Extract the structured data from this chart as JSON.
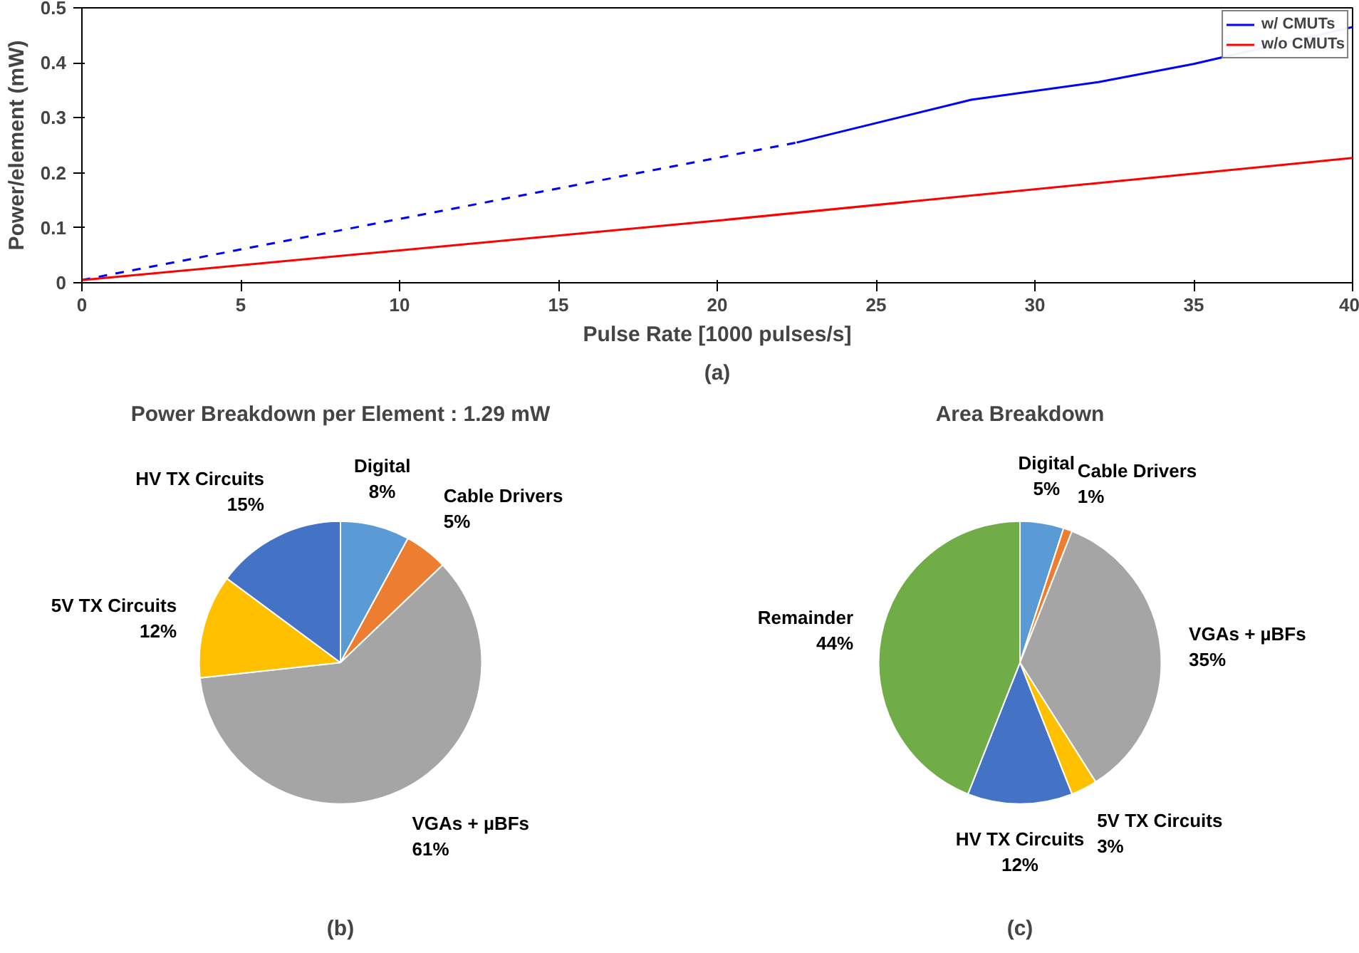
{
  "chart_data": [
    {
      "type": "line",
      "xlabel": "Pulse Rate [1000 pulses/s]",
      "ylabel": "Power/element (mW)",
      "xlim": [
        0,
        40
      ],
      "ylim": [
        0,
        0.5
      ],
      "xticks": [
        0,
        5,
        10,
        15,
        20,
        25,
        30,
        35,
        40
      ],
      "yticks": [
        0,
        0.1,
        0.2,
        0.3,
        0.4,
        0.5
      ],
      "grid": false,
      "legend": "top right",
      "annotations": [
        "(a)"
      ],
      "series": [
        {
          "color": "#0000ff",
          "line_style": "dashed",
          "x": [
            0,
            22.5
          ],
          "values": [
            0.005,
            0.255
          ]
        },
        {
          "name": "w/ CMUTs",
          "color": "#0000ff",
          "line_style": "solid",
          "x": [
            22.5,
            28,
            32,
            35,
            40
          ],
          "values": [
            0.255,
            0.333,
            0.365,
            0.398,
            0.465
          ]
        },
        {
          "name": "w/o CMUTs",
          "color": "#ff0000",
          "line_style": "solid",
          "x": [
            0,
            20,
            40
          ],
          "values": [
            0.005,
            0.113,
            0.227
          ]
        }
      ]
    },
    {
      "type": "pie",
      "title": "Power Breakdown per Element : 1.29 mW",
      "annotations": [
        "(b)"
      ],
      "categories": [
        "Digital",
        "Cable Drivers",
        "VGAs + µBFs",
        "5V TX Circuits",
        "HV TX Circuits"
      ],
      "values": [
        8,
        5,
        61,
        12,
        15
      ],
      "value_labels": [
        "8%",
        "5%",
        "61%",
        "12%",
        "15%"
      ],
      "colors": [
        "#5b9bd5",
        "#ed7d31",
        "#a5a5a5",
        "#ffc000",
        "#4472c4"
      ]
    },
    {
      "type": "pie",
      "title": "Area Breakdown",
      "annotations": [
        "(c)"
      ],
      "categories": [
        "Digital",
        "Cable Drivers",
        "VGAs + µBFs",
        "5V TX Circuits",
        "HV TX Circuits",
        "Remainder"
      ],
      "values": [
        5,
        1,
        35,
        3,
        12,
        44
      ],
      "value_labels": [
        "5%",
        "1%",
        "35%",
        "3%",
        "12%",
        "44%"
      ],
      "colors": [
        "#5b9bd5",
        "#ed7d31",
        "#a5a5a5",
        "#ffc000",
        "#4472c4",
        "#70ad47"
      ]
    }
  ]
}
